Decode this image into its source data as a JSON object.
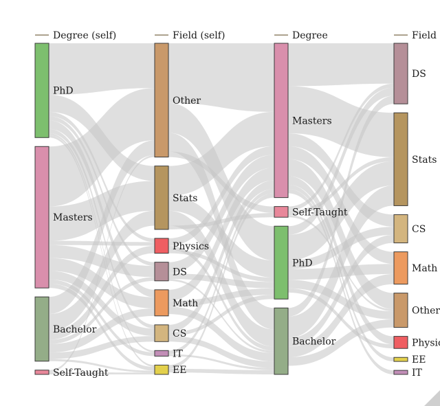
{
  "diagram": {
    "type": "parallel_sankey",
    "axes": [
      {
        "id": "degree_self",
        "title": "Degree (self)",
        "nodes": [
          {
            "id": "phd",
            "label": "PhD",
            "color": "#7dbf6e"
          },
          {
            "id": "masters",
            "label": "Masters",
            "color": "#d98fac"
          },
          {
            "id": "bachelor",
            "label": "Bachelor",
            "color": "#94ad88"
          },
          {
            "id": "selftaught",
            "label": "Self-Taught",
            "color": "#e8879a"
          }
        ]
      },
      {
        "id": "field_self",
        "title": "Field (self)",
        "nodes": [
          {
            "id": "other",
            "label": "Other",
            "color": "#c9996a"
          },
          {
            "id": "stats",
            "label": "Stats",
            "color": "#b5955f"
          },
          {
            "id": "physics",
            "label": "Physics",
            "color": "#ef5e62"
          },
          {
            "id": "ds",
            "label": "DS",
            "color": "#b58f98"
          },
          {
            "id": "math",
            "label": "Math",
            "color": "#ec9a5f"
          },
          {
            "id": "cs",
            "label": "CS",
            "color": "#d3b57f"
          },
          {
            "id": "it",
            "label": "IT",
            "color": "#c28eb7"
          },
          {
            "id": "ee",
            "label": "EE",
            "color": "#e3d04c"
          }
        ]
      },
      {
        "id": "degree",
        "title": "Degree",
        "nodes": [
          {
            "id": "masters",
            "label": "Masters",
            "color": "#d98fac"
          },
          {
            "id": "selftaught",
            "label": "Self-Taught",
            "color": "#e8879a"
          },
          {
            "id": "phd",
            "label": "PhD",
            "color": "#7dbf6e"
          },
          {
            "id": "bachelor",
            "label": "Bachelor",
            "color": "#94ad88"
          }
        ]
      },
      {
        "id": "field",
        "title": "Field",
        "nodes": [
          {
            "id": "ds",
            "label": "DS",
            "color": "#b58f98"
          },
          {
            "id": "stats",
            "label": "Stats",
            "color": "#b5955f"
          },
          {
            "id": "cs",
            "label": "CS",
            "color": "#d3b57f"
          },
          {
            "id": "math",
            "label": "Math",
            "color": "#ec9a5f"
          },
          {
            "id": "other",
            "label": "Other",
            "color": "#c9996a"
          },
          {
            "id": "physics",
            "label": "Physics",
            "color": "#ef5e62"
          },
          {
            "id": "ee",
            "label": "EE",
            "color": "#e3d04c"
          },
          {
            "id": "it",
            "label": "IT",
            "color": "#c28eb7"
          }
        ]
      }
    ],
    "links": [
      {
        "axis": 0,
        "from": "phd",
        "to": "other",
        "value": 12
      },
      {
        "axis": 0,
        "from": "phd",
        "to": "stats",
        "value": 4
      },
      {
        "axis": 0,
        "from": "phd",
        "to": "physics",
        "value": 1
      },
      {
        "axis": 0,
        "from": "phd",
        "to": "ds",
        "value": 1
      },
      {
        "axis": 0,
        "from": "phd",
        "to": "math",
        "value": 2
      },
      {
        "axis": 0,
        "from": "phd",
        "to": "cs",
        "value": 1
      },
      {
        "axis": 0,
        "from": "phd",
        "to": "it",
        "value": 0.5
      },
      {
        "axis": 0,
        "from": "phd",
        "to": "ee",
        "value": 0.5
      },
      {
        "axis": 0,
        "from": "masters",
        "to": "other",
        "value": 14
      },
      {
        "axis": 0,
        "from": "masters",
        "to": "stats",
        "value": 8
      },
      {
        "axis": 0,
        "from": "masters",
        "to": "physics",
        "value": 1
      },
      {
        "axis": 0,
        "from": "masters",
        "to": "ds",
        "value": 3
      },
      {
        "axis": 0,
        "from": "masters",
        "to": "math",
        "value": 3
      },
      {
        "axis": 0,
        "from": "masters",
        "to": "cs",
        "value": 2
      },
      {
        "axis": 0,
        "from": "masters",
        "to": "it",
        "value": 1
      },
      {
        "axis": 0,
        "from": "masters",
        "to": "ee",
        "value": 1
      },
      {
        "axis": 0,
        "from": "bachelor",
        "to": "other",
        "value": 4
      },
      {
        "axis": 0,
        "from": "bachelor",
        "to": "stats",
        "value": 4
      },
      {
        "axis": 0,
        "from": "bachelor",
        "to": "physics",
        "value": 2
      },
      {
        "axis": 0,
        "from": "bachelor",
        "to": "ds",
        "value": 1
      },
      {
        "axis": 0,
        "from": "bachelor",
        "to": "math",
        "value": 2
      },
      {
        "axis": 0,
        "from": "bachelor",
        "to": "cs",
        "value": 1.5
      },
      {
        "axis": 0,
        "from": "bachelor",
        "to": "ee",
        "value": 0.5
      },
      {
        "axis": 0,
        "from": "selftaught",
        "to": "other",
        "value": 0.5
      },
      {
        "axis": 0,
        "from": "selftaught",
        "to": "ee",
        "value": 0.5
      },
      {
        "axis": 1,
        "from": "other",
        "to": "masters",
        "value": 16
      },
      {
        "axis": 1,
        "from": "other",
        "to": "phd",
        "value": 8
      },
      {
        "axis": 1,
        "from": "other",
        "to": "bachelor",
        "value": 5
      },
      {
        "axis": 1,
        "from": "other",
        "to": "selftaught",
        "value": 1.5
      },
      {
        "axis": 1,
        "from": "stats",
        "to": "masters",
        "value": 8
      },
      {
        "axis": 1,
        "from": "stats",
        "to": "phd",
        "value": 4
      },
      {
        "axis": 1,
        "from": "stats",
        "to": "bachelor",
        "value": 4
      },
      {
        "axis": 1,
        "from": "stats",
        "to": "selftaught",
        "value": 1
      },
      {
        "axis": 1,
        "from": "physics",
        "to": "masters",
        "value": 2
      },
      {
        "axis": 1,
        "from": "physics",
        "to": "bachelor",
        "value": 1
      },
      {
        "axis": 1,
        "from": "physics",
        "to": "phd",
        "value": 1
      },
      {
        "axis": 1,
        "from": "ds",
        "to": "masters",
        "value": 3
      },
      {
        "axis": 1,
        "from": "ds",
        "to": "phd",
        "value": 1.5
      },
      {
        "axis": 1,
        "from": "ds",
        "to": "bachelor",
        "value": 0.5
      },
      {
        "axis": 1,
        "from": "math",
        "to": "masters",
        "value": 3
      },
      {
        "axis": 1,
        "from": "math",
        "to": "phd",
        "value": 1.5
      },
      {
        "axis": 1,
        "from": "math",
        "to": "bachelor",
        "value": 2
      },
      {
        "axis": 1,
        "from": "cs",
        "to": "masters",
        "value": 2
      },
      {
        "axis": 1,
        "from": "cs",
        "to": "phd",
        "value": 1
      },
      {
        "axis": 1,
        "from": "cs",
        "to": "bachelor",
        "value": 1.5
      },
      {
        "axis": 1,
        "from": "it",
        "to": "masters",
        "value": 1
      },
      {
        "axis": 1,
        "from": "it",
        "to": "bachelor",
        "value": 0.5
      },
      {
        "axis": 1,
        "from": "ee",
        "to": "masters",
        "value": 1
      },
      {
        "axis": 1,
        "from": "ee",
        "to": "bachelor",
        "value": 1
      },
      {
        "axis": 2,
        "from": "masters",
        "to": "ds",
        "value": 10
      },
      {
        "axis": 2,
        "from": "masters",
        "to": "stats",
        "value": 11
      },
      {
        "axis": 2,
        "from": "masters",
        "to": "cs",
        "value": 3
      },
      {
        "axis": 2,
        "from": "masters",
        "to": "math",
        "value": 3
      },
      {
        "axis": 2,
        "from": "masters",
        "to": "other",
        "value": 4
      },
      {
        "axis": 2,
        "from": "masters",
        "to": "physics",
        "value": 2
      },
      {
        "axis": 2,
        "from": "masters",
        "to": "ee",
        "value": 1
      },
      {
        "axis": 2,
        "from": "masters",
        "to": "it",
        "value": 1
      },
      {
        "axis": 2,
        "from": "selftaught",
        "to": "ds",
        "value": 1
      },
      {
        "axis": 2,
        "from": "selftaught",
        "to": "stats",
        "value": 1
      },
      {
        "axis": 2,
        "from": "selftaught",
        "to": "other",
        "value": 0.5
      },
      {
        "axis": 2,
        "from": "phd",
        "to": "ds",
        "value": 2
      },
      {
        "axis": 2,
        "from": "phd",
        "to": "stats",
        "value": 6
      },
      {
        "axis": 2,
        "from": "phd",
        "to": "cs",
        "value": 2
      },
      {
        "axis": 2,
        "from": "phd",
        "to": "math",
        "value": 2.5
      },
      {
        "axis": 2,
        "from": "phd",
        "to": "other",
        "value": 2
      },
      {
        "axis": 2,
        "from": "phd",
        "to": "physics",
        "value": 1
      },
      {
        "axis": 2,
        "from": "bachelor",
        "to": "ds",
        "value": 2
      },
      {
        "axis": 2,
        "from": "bachelor",
        "to": "stats",
        "value": 5
      },
      {
        "axis": 2,
        "from": "bachelor",
        "to": "cs",
        "value": 2
      },
      {
        "axis": 2,
        "from": "bachelor",
        "to": "math",
        "value": 2.5
      },
      {
        "axis": 2,
        "from": "bachelor",
        "to": "other",
        "value": 2
      }
    ]
  },
  "colors": {
    "flow": "#c4c4c4",
    "axis_tick": "#7a6a4a",
    "node_stroke": "#3a3a3a"
  }
}
